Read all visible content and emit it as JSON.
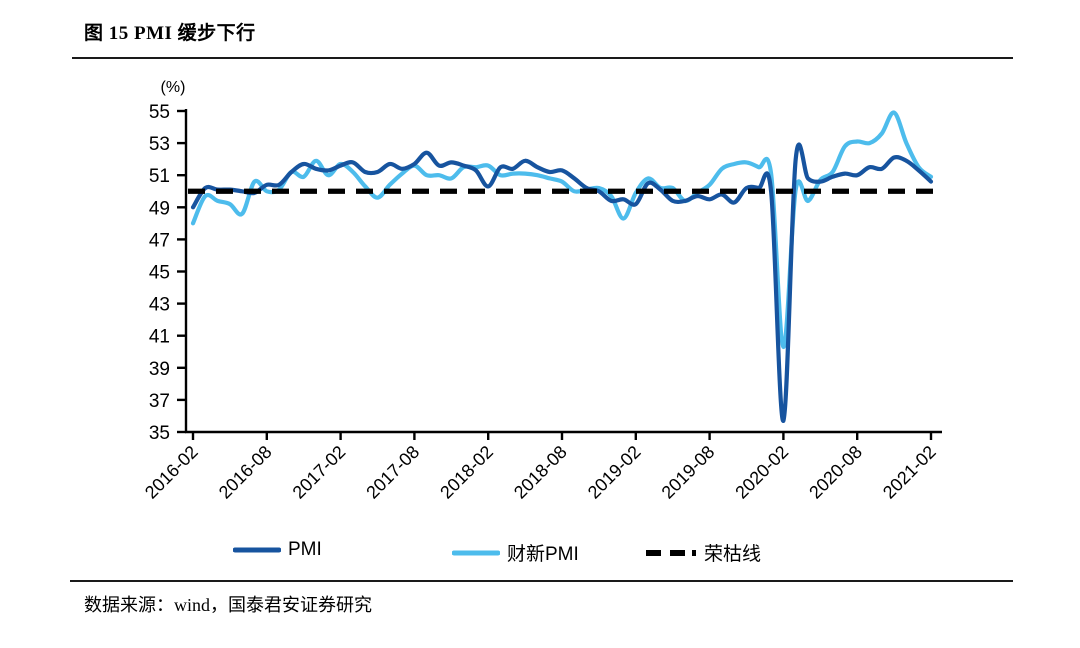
{
  "figure": {
    "title": "图 15 PMI 缓步下行"
  },
  "footer": {
    "source": "数据来源：wind，国泰君安证券研究"
  },
  "chart_data": {
    "type": "line",
    "title": "图 15 PMI 缓步下行",
    "unit_label": "(%)",
    "ylim": [
      35,
      55
    ],
    "y_ticks": [
      55,
      53,
      51,
      49,
      47,
      45,
      43,
      41,
      39,
      37,
      35
    ],
    "x_tick_labels": [
      "2016-02",
      "2016-08",
      "2017-02",
      "2017-08",
      "2018-02",
      "2018-08",
      "2019-02",
      "2019-08",
      "2020-02",
      "2020-08",
      "2021-02"
    ],
    "legend_position": "bottom",
    "grid": false,
    "months": [
      "2016-02",
      "2016-03",
      "2016-04",
      "2016-05",
      "2016-06",
      "2016-07",
      "2016-08",
      "2016-09",
      "2016-10",
      "2016-11",
      "2016-12",
      "2017-01",
      "2017-02",
      "2017-03",
      "2017-04",
      "2017-05",
      "2017-06",
      "2017-07",
      "2017-08",
      "2017-09",
      "2017-10",
      "2017-11",
      "2017-12",
      "2018-01",
      "2018-02",
      "2018-03",
      "2018-04",
      "2018-05",
      "2018-06",
      "2018-07",
      "2018-08",
      "2018-09",
      "2018-10",
      "2018-11",
      "2018-12",
      "2019-01",
      "2019-02",
      "2019-03",
      "2019-04",
      "2019-05",
      "2019-06",
      "2019-07",
      "2019-08",
      "2019-09",
      "2019-10",
      "2019-11",
      "2019-12",
      "2020-01",
      "2020-02",
      "2020-03",
      "2020-04",
      "2020-05",
      "2020-06",
      "2020-07",
      "2020-08",
      "2020-09",
      "2020-10",
      "2020-11",
      "2020-12",
      "2021-01",
      "2021-02"
    ],
    "series": [
      {
        "name": "PMI",
        "color": "#17549F",
        "values": [
          49.0,
          50.2,
          50.1,
          50.1,
          50.0,
          49.9,
          50.4,
          50.4,
          51.2,
          51.7,
          51.4,
          51.3,
          51.6,
          51.8,
          51.2,
          51.2,
          51.7,
          51.4,
          51.7,
          52.4,
          51.6,
          51.8,
          51.6,
          51.3,
          50.3,
          51.5,
          51.4,
          51.9,
          51.5,
          51.2,
          51.3,
          50.8,
          50.2,
          50.0,
          49.4,
          49.5,
          49.2,
          50.5,
          50.1,
          49.4,
          49.4,
          49.7,
          49.5,
          49.8,
          49.3,
          50.2,
          50.2,
          50.0,
          35.7,
          52.0,
          50.8,
          50.6,
          50.9,
          51.1,
          51.0,
          51.5,
          51.4,
          52.1,
          51.9,
          51.3,
          50.6
        ]
      },
      {
        "name": "财新PMI",
        "color": "#4DBCEC",
        "values": [
          48.0,
          49.7,
          49.4,
          49.2,
          48.6,
          50.6,
          50.0,
          50.1,
          51.2,
          50.9,
          51.9,
          51.0,
          51.7,
          51.2,
          50.3,
          49.6,
          50.4,
          51.1,
          51.6,
          51.0,
          51.0,
          50.8,
          51.5,
          51.5,
          51.6,
          51.0,
          51.1,
          51.1,
          51.0,
          50.8,
          50.6,
          50.0,
          50.1,
          50.2,
          49.7,
          48.3,
          49.9,
          50.8,
          50.2,
          50.2,
          49.4,
          49.9,
          50.4,
          51.4,
          51.7,
          51.8,
          51.5,
          51.1,
          40.3,
          50.1,
          49.4,
          50.7,
          51.2,
          52.8,
          53.1,
          53.0,
          53.6,
          54.9,
          53.0,
          51.5,
          50.9
        ]
      }
    ],
    "reference_line": {
      "name": "荣枯线",
      "value": 50,
      "color": "#000000",
      "style": "dashed"
    }
  }
}
